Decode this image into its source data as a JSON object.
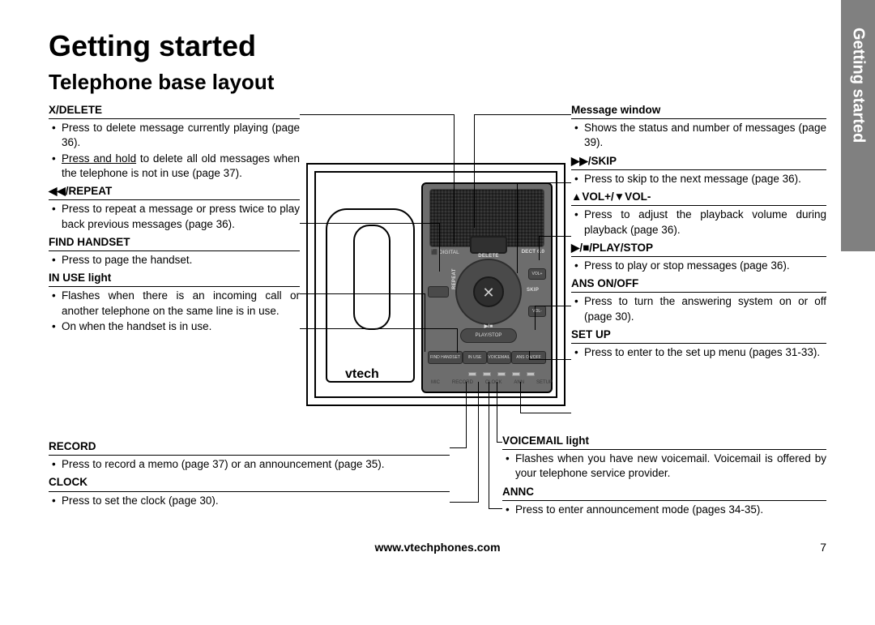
{
  "side_tab": "Getting started",
  "heading": "Getting started",
  "subheading": "Telephone base layout",
  "footer_url": "www.vtechphones.com",
  "footer_page": "7",
  "brand": "vtech",
  "device": {
    "msg_window_label": "",
    "dpad_center_glyph": "✕",
    "dpad_top": "DELETE",
    "dpad_bottom": "▶/■",
    "dpad_left": "REPEAT",
    "dpad_right": "SKIP",
    "play_label": "PLAY/STOP",
    "volup_label": "VOL+",
    "voldn_label": "VOL-",
    "rec_label": "",
    "btn_find": "FIND HANDSET",
    "btn_inuse": "IN USE",
    "btn_voicemail": "VOICEMAIL",
    "btn_ans": "ANS ON/OFF",
    "tiny_labels": [
      "MIC",
      "RECORD",
      "CLOCK",
      "ANN",
      "SETUP"
    ],
    "badge_left": "⬛ DIGITAL",
    "badge_right": "DECT 6.0"
  },
  "left_blocks": [
    {
      "title": "X/DELETE",
      "items": [
        {
          "text": "Press to delete message currently playing (page 36)."
        },
        {
          "html": "<span class='ul'>Press and hold</span> to delete all old messages when the telephone is not in use (page 37)."
        }
      ]
    },
    {
      "title": "◀◀/REPEAT",
      "items": [
        {
          "text": "Press to repeat a message or press twice to play back previous messages (page 36)."
        }
      ]
    },
    {
      "title": "FIND HANDSET",
      "items": [
        {
          "text": "Press to page the handset."
        }
      ]
    },
    {
      "title": "IN USE light",
      "items": [
        {
          "text": "Flashes when there is an incoming call or another telephone on the same line is in use."
        },
        {
          "text": "On when the handset is in use."
        }
      ]
    }
  ],
  "left_lower_blocks": [
    {
      "title": "RECORD",
      "items": [
        {
          "text": "Press to record a memo (page 37) or an announcement (page 35)."
        }
      ]
    },
    {
      "title": "CLOCK",
      "items": [
        {
          "text": "Press to set the clock (page  30)."
        }
      ]
    }
  ],
  "right_blocks": [
    {
      "title": "Message window",
      "items": [
        {
          "text": "Shows the status and number of messages (page 39)."
        }
      ]
    },
    {
      "title": "▶▶/SKIP",
      "items": [
        {
          "text": "Press to skip to the next message (page 36)."
        }
      ]
    },
    {
      "title": "▲VOL+/▼VOL-",
      "items": [
        {
          "text": "Press to adjust the playback volume during playback (page 36)."
        }
      ]
    },
    {
      "title": "▶/■/PLAY/STOP",
      "items": [
        {
          "text": "Press to play or stop messages (page 36)."
        }
      ]
    },
    {
      "title": "ANS ON/OFF",
      "items": [
        {
          "text": "Press to turn the answering system on or off (page 30)."
        }
      ]
    },
    {
      "title": "SET UP",
      "items": [
        {
          "text": "Press to enter to the set up menu (pages 31-33)."
        }
      ]
    }
  ],
  "right_lower_blocks": [
    {
      "title": "VOICEMAIL light",
      "items": [
        {
          "text": "Flashes when you have new voicemail. Voicemail is offered by your telephone service provider."
        }
      ]
    },
    {
      "title": "ANNC",
      "items": [
        {
          "text": "Press to enter announcement mode (pages 34-35)."
        }
      ]
    }
  ],
  "colors": {
    "tab_bg": "#808080",
    "tab_fg": "#ffffff",
    "panel_bg": "#6d6d6d",
    "text": "#000000"
  }
}
